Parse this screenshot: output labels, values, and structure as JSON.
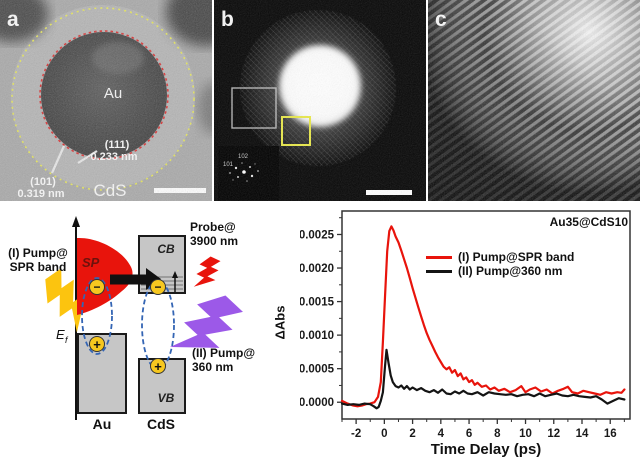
{
  "colors": {
    "red": "#e8140c",
    "dark_red_text": "#6d120c",
    "yellow": "#fcc40f",
    "purple": "#9c59e8",
    "blue_dash": "#3465b4",
    "box_gray": "#c6c6c6",
    "box_border": "#1a1a1a",
    "marker_yellow": "#f6c71f",
    "tem_red_circle": "#d93030",
    "tem_yellow_circle": "#e6e65a"
  },
  "panels": {
    "a": {
      "label": "a",
      "core_label": "Au",
      "shell_label": "CdS",
      "d111_plane": "(111)",
      "d111_spacing": "0.233 nm",
      "d101_plane": "(101)",
      "d101_spacing": "0.319 nm"
    },
    "b": {
      "label": "b",
      "fft_spot_top": "102",
      "fft_spot_left": "101"
    },
    "c": {
      "label": "c"
    }
  },
  "diagram": {
    "pump1_line1": "(I) Pump@",
    "pump1_line2": "SPR band",
    "sp_label": "SP",
    "cb_label": "CB",
    "vb_label": "VB",
    "probe_line1": "Probe@",
    "probe_line2": "3900 nm",
    "pump2_line1": "(II) Pump@",
    "pump2_line2": "360 nm",
    "ef_base": "E",
    "ef_sub": "f",
    "au_label": "Au",
    "cds_label": "CdS",
    "electron_symbol": "−",
    "hole_symbol": "+"
  },
  "chart_data": {
    "type": "line",
    "title": "Au35@CdS10",
    "xlabel": "Time Delay (ps)",
    "ylabel": "ΔAbs",
    "xlim": [
      -3,
      17.4
    ],
    "ylim": [
      -0.00025,
      0.00285
    ],
    "grid": false,
    "legend_position": "upper-left-inside",
    "xticks": {
      "values": [
        -2,
        0,
        2,
        4,
        6,
        8,
        10,
        12,
        14,
        16
      ],
      "labels": [
        "-2",
        "0",
        "2",
        "4",
        "6",
        "8",
        "10",
        "12",
        "14",
        "16"
      ],
      "minor": [
        -3,
        -1,
        1,
        3,
        5,
        7,
        9,
        11,
        13,
        15,
        17
      ]
    },
    "yticks": {
      "values": [
        0.0,
        0.0005,
        0.001,
        0.0015,
        0.002,
        0.0025
      ],
      "labels": [
        "0.0000",
        "0.0005",
        "0.0010",
        "0.0015",
        "0.0020",
        "0.0025"
      ],
      "minor": [
        0.00025,
        0.00075,
        0.00125,
        0.00175,
        0.00225,
        0.00275
      ]
    },
    "series": [
      {
        "name": "(I) Pump@SPR band",
        "color": "#e8140c",
        "x": [
          -3,
          -2.6,
          -2.2,
          -1.9,
          -1.6,
          -1.3,
          -1.0,
          -0.7,
          -0.45,
          -0.25,
          -0.1,
          0.05,
          0.2,
          0.35,
          0.5,
          0.65,
          0.8,
          1.0,
          1.2,
          1.4,
          1.6,
          1.8,
          2.0,
          2.2,
          2.4,
          2.6,
          2.8,
          3.0,
          3.2,
          3.4,
          3.6,
          3.8,
          4.0,
          4.2,
          4.4,
          4.6,
          4.8,
          5.0,
          5.2,
          5.4,
          5.6,
          5.8,
          6.0,
          6.2,
          6.4,
          6.6,
          6.9,
          7.2,
          7.5,
          7.8,
          8.1,
          8.5,
          8.9,
          9.3,
          9.7,
          10.0,
          10.3,
          10.7,
          11.1,
          11.5,
          11.9,
          12.3,
          12.7,
          13.0,
          13.3,
          13.7,
          14.1,
          14.5,
          14.9,
          15.3,
          15.7,
          16.1,
          16.5,
          16.8,
          17.0
        ],
        "y": [
          2e-05,
          -2e-05,
          -5e-05,
          -6e-05,
          -5e-05,
          -3e-05,
          -2e-05,
          0.0,
          8e-05,
          0.0003,
          0.0009,
          0.0016,
          0.00225,
          0.00255,
          0.00262,
          0.00256,
          0.00247,
          0.00238,
          0.00226,
          0.00213,
          0.002,
          0.00185,
          0.0017,
          0.00156,
          0.00142,
          0.00128,
          0.00115,
          0.00103,
          0.00093,
          0.00084,
          0.00075,
          0.00067,
          0.0006,
          0.00053,
          0.00049,
          0.00052,
          0.00044,
          0.00048,
          0.00039,
          0.00043,
          0.00034,
          0.00037,
          0.0003,
          0.00033,
          0.00026,
          0.00029,
          0.00023,
          0.00025,
          0.00019,
          0.00022,
          0.00017,
          0.0002,
          0.00015,
          0.00018,
          0.00024,
          0.00015,
          0.00019,
          0.00022,
          0.00016,
          0.00019,
          0.00013,
          0.00017,
          0.0002,
          0.00023,
          0.00015,
          0.00013,
          0.00017,
          0.00015,
          0.00013,
          0.00011,
          0.00015,
          0.00013,
          0.00015,
          0.00014,
          0.00019
        ]
      },
      {
        "name": "(II) Pump@360 nm",
        "color": "#141414",
        "x": [
          -3,
          -2.6,
          -2.2,
          -1.8,
          -1.4,
          -1.0,
          -0.75,
          -0.55,
          -0.4,
          -0.25,
          -0.1,
          0.05,
          0.15,
          0.3,
          0.45,
          0.6,
          0.8,
          1.0,
          1.2,
          1.4,
          1.6,
          1.8,
          2.0,
          2.3,
          2.6,
          2.9,
          3.2,
          3.5,
          3.8,
          4.1,
          4.4,
          4.7,
          5.0,
          5.3,
          5.6,
          5.9,
          6.2,
          6.6,
          7.0,
          7.4,
          7.8,
          8.2,
          8.6,
          9.0,
          9.4,
          9.8,
          10.2,
          10.6,
          11.0,
          11.4,
          11.8,
          12.2,
          12.6,
          13.0,
          13.4,
          13.8,
          14.2,
          14.6,
          15.0,
          15.4,
          15.8,
          16.2,
          16.6,
          17.0
        ],
        "y": [
          -2e-05,
          -4e-05,
          -3e-05,
          -4e-05,
          -2e-05,
          -3e-05,
          -6e-05,
          -9e-05,
          -7e-05,
          2e-05,
          0.00015,
          0.00055,
          0.00078,
          0.00058,
          0.0004,
          0.0003,
          0.00024,
          0.00022,
          0.00025,
          0.0002,
          0.00024,
          0.00019,
          0.00022,
          0.00018,
          0.00021,
          0.00017,
          0.00015,
          0.00018,
          0.00014,
          0.00019,
          0.00013,
          0.00012,
          0.00016,
          0.00013,
          0.00017,
          0.00013,
          0.00012,
          0.00015,
          0.0001,
          0.00015,
          0.00013,
          0.00012,
          0.00011,
          0.00012,
          9e-05,
          0.00011,
          0.00012,
          9e-05,
          0.00013,
          9e-05,
          0.00011,
          0.00013,
          0.0001,
          9e-05,
          0.00011,
          9e-05,
          8e-05,
          7e-05,
          9e-05,
          4e-05,
          -2e-05,
          2e-05,
          6e-05,
          4e-05
        ]
      }
    ]
  }
}
